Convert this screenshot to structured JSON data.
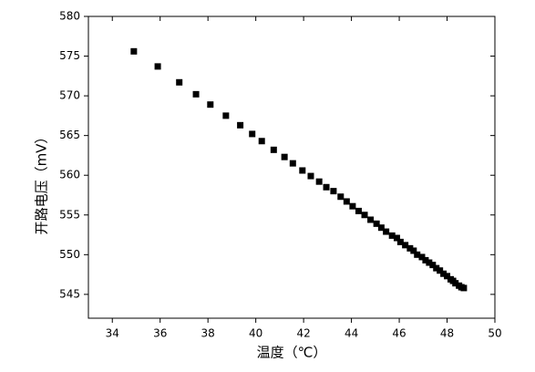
{
  "chart_data": {
    "type": "scatter",
    "x_label": "温度（℃）",
    "y_label": "开路电压（mV）",
    "xlim": [
      33,
      50
    ],
    "xticks": [
      34,
      36,
      38,
      40,
      42,
      44,
      46,
      48,
      50
    ],
    "ylim": [
      542,
      580
    ],
    "yticks": [
      545,
      550,
      555,
      560,
      565,
      570,
      575,
      580
    ],
    "color": "#000000",
    "x": [
      34.9,
      35.9,
      36.8,
      37.5,
      38.1,
      38.75,
      39.35,
      39.85,
      40.25,
      40.75,
      41.2,
      41.55,
      41.95,
      42.3,
      42.65,
      42.95,
      43.25,
      43.55,
      43.8,
      44.05,
      44.3,
      44.55,
      44.8,
      45.05,
      45.25,
      45.45,
      45.7,
      45.9,
      46.05,
      46.25,
      46.45,
      46.6,
      46.75,
      46.95,
      47.1,
      47.25,
      47.4,
      47.55,
      47.7,
      47.85,
      48.0,
      48.15,
      48.25,
      48.35,
      48.5,
      48.6,
      48.7
    ],
    "values": [
      575.6,
      573.7,
      571.7,
      570.2,
      568.9,
      567.5,
      566.3,
      565.2,
      564.3,
      563.2,
      562.3,
      561.5,
      560.6,
      559.9,
      559.2,
      558.5,
      558.0,
      557.3,
      556.7,
      556.1,
      555.5,
      555.0,
      554.4,
      553.9,
      553.4,
      552.9,
      552.4,
      552.1,
      551.6,
      551.2,
      550.8,
      550.5,
      550.0,
      549.7,
      549.3,
      549.0,
      548.7,
      548.3,
      548.0,
      547.6,
      547.3,
      546.9,
      546.7,
      546.4,
      546.1,
      545.9,
      545.8
    ]
  }
}
